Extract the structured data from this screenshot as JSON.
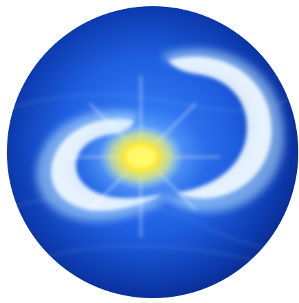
{
  "image": {
    "subject": "swirl-orb-icon",
    "colors": {
      "background": "#ffffff",
      "deep_blue": "#0a2a8c",
      "mid_blue": "#1e5ee0",
      "light_blue": "#7fd0ff",
      "swirl_white": "#f2fbff",
      "core_yellow": "#ffe82a"
    }
  }
}
